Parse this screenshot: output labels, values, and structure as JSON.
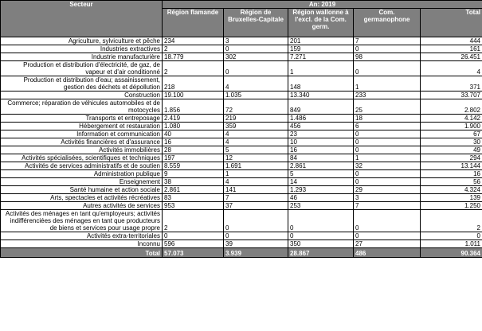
{
  "header": {
    "sector_label": "Secteur",
    "year_label": "An: 2019",
    "columns": [
      "Région flamande",
      "Région de Bruxelles-Capitale",
      "Région wallonne à l'excl. de la Com. germ.",
      "Com. germanophone",
      "Total"
    ]
  },
  "rows": [
    {
      "sector": "Agriculture, sylviculture et pêche",
      "values": [
        "234",
        "3",
        "201",
        "7",
        "444"
      ]
    },
    {
      "sector": "Industries extractives",
      "values": [
        "2",
        "0",
        "159",
        "0",
        "161"
      ]
    },
    {
      "sector": "Industrie manufacturière",
      "values": [
        "18.779",
        "302",
        "7.271",
        "98",
        "26.451"
      ]
    },
    {
      "sector": "Production et distribution d'électricité, de gaz, de vapeur et d'air conditionné",
      "values": [
        "2",
        "0",
        "1",
        "0",
        "4"
      ]
    },
    {
      "sector": "Production et distribution d'eau; assainissement, gestion des déchets et dépollution",
      "values": [
        "218",
        "4",
        "148",
        "1",
        "371"
      ]
    },
    {
      "sector": "Construction",
      "values": [
        "19.100",
        "1.035",
        "13.340",
        "233",
        "33.707"
      ]
    },
    {
      "sector": "Commerce; réparation de véhicules automobiles et de motocycles",
      "values": [
        "1.856",
        "72",
        "849",
        "25",
        "2.802"
      ]
    },
    {
      "sector": "Transports et entreposage",
      "values": [
        "2.419",
        "219",
        "1.486",
        "18",
        "4.142"
      ]
    },
    {
      "sector": "Hébergement et restauration",
      "values": [
        "1.080",
        "359",
        "456",
        "6",
        "1.900"
      ]
    },
    {
      "sector": "Information et communication",
      "values": [
        "40",
        "4",
        "23",
        "0",
        "67"
      ]
    },
    {
      "sector": "Activités financières et d'assurance",
      "values": [
        "16",
        "4",
        "10",
        "0",
        "30"
      ]
    },
    {
      "sector": "Activités immobilières",
      "values": [
        "28",
        "5",
        "16",
        "0",
        "49"
      ]
    },
    {
      "sector": "Activités spécialisées, scientifiques et techniques",
      "values": [
        "197",
        "12",
        "84",
        "1",
        "294"
      ]
    },
    {
      "sector": "Activités de services administratifs et de soutien",
      "values": [
        "8.559",
        "1.691",
        "2.861",
        "32",
        "13.144"
      ]
    },
    {
      "sector": "Administration publique",
      "values": [
        "9",
        "1",
        "5",
        "0",
        "16"
      ]
    },
    {
      "sector": "Enseignement",
      "values": [
        "38",
        "4",
        "14",
        "0",
        "56"
      ]
    },
    {
      "sector": "Santé humaine et action sociale",
      "values": [
        "2.861",
        "141",
        "1.293",
        "29",
        "4.324"
      ]
    },
    {
      "sector": "Arts, spectacles et activités récréatives",
      "values": [
        "83",
        "7",
        "46",
        "3",
        "139"
      ]
    },
    {
      "sector": "Autres activités de services",
      "values": [
        "953",
        "37",
        "253",
        "7",
        "1.250"
      ]
    },
    {
      "sector": "Activités des ménages en tant qu'employeurs; activités indifférenciées des ménages en tant que producteurs de biens et services pour usage propre",
      "values": [
        "2",
        "0",
        "0",
        "0",
        "2"
      ]
    },
    {
      "sector": "Activités extra-territoriales",
      "values": [
        "0",
        "0",
        "0",
        "0",
        "0"
      ]
    },
    {
      "sector": "Inconnu",
      "values": [
        "596",
        "39",
        "350",
        "27",
        "1.011"
      ]
    }
  ],
  "total": {
    "label": "Total",
    "values": [
      "57.073",
      "3.939",
      "28.867",
      "486",
      "90.364"
    ]
  }
}
